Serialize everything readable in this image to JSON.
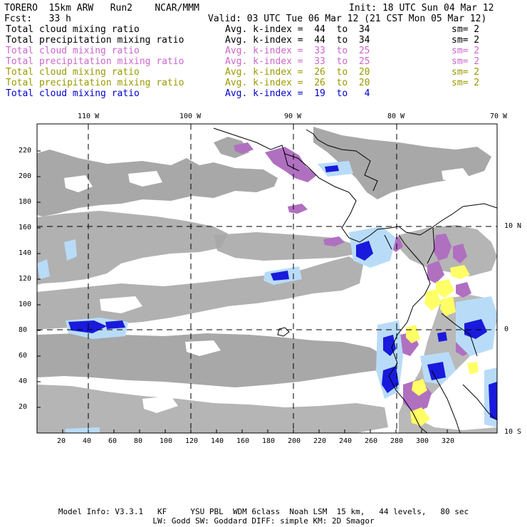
{
  "header": {
    "model": "TORERO  15km ARW   Run2    NCAR/MMM",
    "init": "Init: 18 UTC Sun 04 Mar 12",
    "fcst": "Fcst:   33 h",
    "valid": "Valid: 03 UTC Tue 06 Mar 12 (21 CST Mon 05 Mar 12)"
  },
  "legend": [
    {
      "field": "Total cloud mixing ratio",
      "kindex": "Avg. k-index =  44  to  34",
      "sm": "sm= 2",
      "color": "#000000"
    },
    {
      "field": "Total precipitation mixing ratio",
      "kindex": "Avg. k-index =  44  to  34",
      "sm": "sm= 2",
      "color": "#000000"
    },
    {
      "field": "Total cloud mixing ratio",
      "kindex": "Avg. k-index =  33  to  25",
      "sm": "sm= 2",
      "color": "#cc66cc"
    },
    {
      "field": "Total precipitation mixing ratio",
      "kindex": "Avg. k-index =  33  to  25",
      "sm": "sm= 2",
      "color": "#cc66cc"
    },
    {
      "field": "Total cloud mixing ratio",
      "kindex": "Avg. k-index =  26  to  20",
      "sm": "sm= 2",
      "color": "#999900"
    },
    {
      "field": "Total precipitation mixing ratio",
      "kindex": "Avg. k-index =  26  to  20",
      "sm": "sm= 2",
      "color": "#999900"
    },
    {
      "field": "Total cloud mixing ratio",
      "kindex": "Avg. k-index =  19  to   4",
      "sm": "",
      "color": "#0000cc"
    }
  ],
  "map": {
    "lon_labels": [
      "110 W",
      "100 W",
      "90 W",
      "80 W",
      "70 W"
    ],
    "lat_labels": [
      "10 N",
      "0",
      "10 S"
    ],
    "x_ticks": [
      "20",
      "40",
      "60",
      "80",
      "100",
      "120",
      "140",
      "160",
      "180",
      "200",
      "220",
      "240",
      "260",
      "280",
      "300",
      "320"
    ],
    "y_ticks": [
      "220",
      "200",
      "180",
      "160",
      "140",
      "120",
      "100",
      "80",
      "60",
      "40",
      "20"
    ],
    "colors": {
      "cloud_gray": "#a8a8a8",
      "purple": "#b070c0",
      "yellow": "#ffff66",
      "blue_dark": "#1a1adc",
      "blue_light": "#b8dcf8",
      "coast": "#000000"
    }
  },
  "footer": {
    "line1": "Model Info: V3.3.1   KF     YSU PBL  WDM 6class  Noah LSM  15 km,   44 levels,   80 sec",
    "line2": "LW: Godd SW: Goddard DIFF: simple KM: 2D Smagor"
  }
}
